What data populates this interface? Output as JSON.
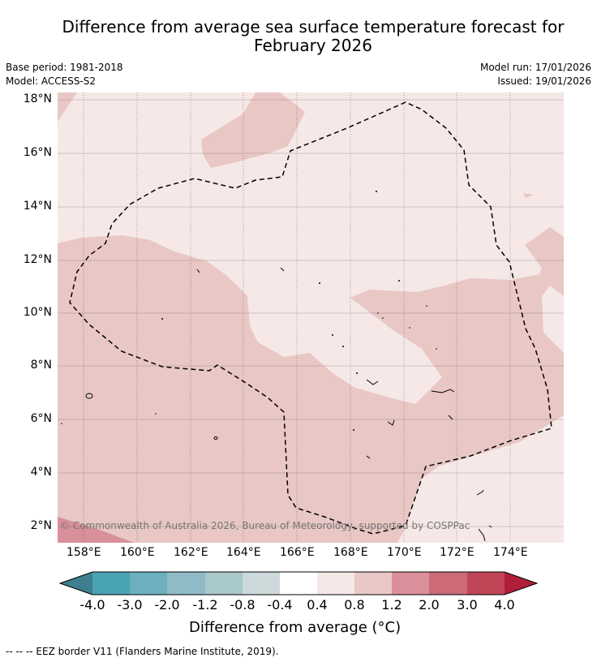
{
  "title_line1": "Difference from average sea surface temperature forecast for",
  "title_line2": "February 2026",
  "meta": {
    "base_period": "Base period: 1981-2018",
    "model": "Model: ACCESS-S2",
    "model_run": "Model run: 17/01/2026",
    "issued": "Issued: 19/01/2026"
  },
  "map": {
    "lat_labels": [
      "18°N",
      "16°N",
      "14°N",
      "12°N",
      "10°N",
      "8°N",
      "6°N",
      "4°N",
      "2°N"
    ],
    "lon_labels": [
      "158°E",
      "160°E",
      "162°E",
      "164°E",
      "166°E",
      "168°E",
      "170°E",
      "172°E",
      "174°E"
    ],
    "copyright": "© Commonwealth of Australia 2026, Bureau of Meteorology, supported by COSPPac",
    "colors": {
      "band_0.4_0.8": "#f5e8e7",
      "band_0.8_1.2": "#e8c7c4",
      "band_1.2_2.0": "#d9909a"
    }
  },
  "colorbar": {
    "labels": [
      "-4.0",
      "-3.0",
      "-2.0",
      "-1.2",
      "-0.8",
      "-0.4",
      "0.4",
      "0.8",
      "1.2",
      "2.0",
      "3.0",
      "4.0"
    ],
    "colors": [
      "#3d7f8c",
      "#4aa2b5",
      "#6cafbf",
      "#8fbbc6",
      "#a8c8cb",
      "#cdd9db",
      "#ffffff",
      "#f5e8e7",
      "#e8c7c4",
      "#d9909a",
      "#cc6a78",
      "#c04556",
      "#b01e3c"
    ],
    "title": "Difference from average (°C)"
  },
  "footer": "--  --  -- EEZ border V11 (Flanders Marine Institute, 2019)."
}
